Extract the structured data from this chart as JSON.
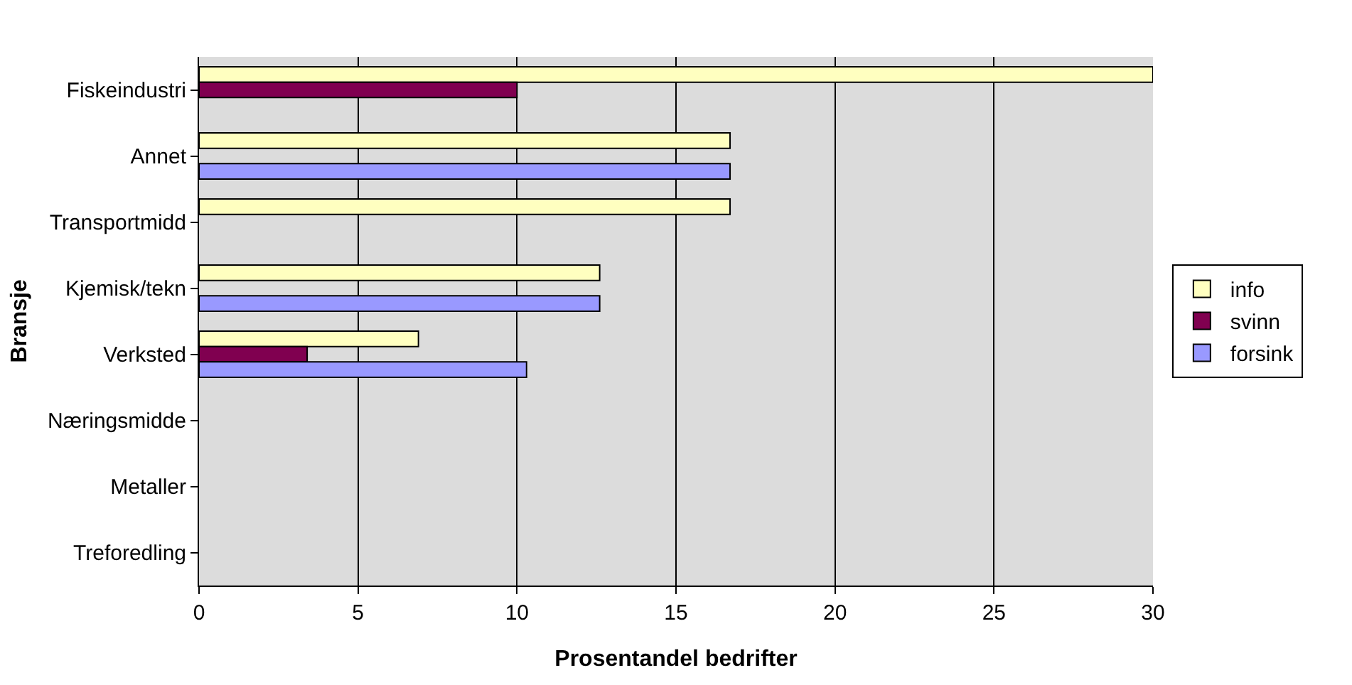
{
  "chart_data": {
    "type": "bar",
    "orientation": "horizontal",
    "xlabel": "Prosentandel bedrifter",
    "ylabel": "Bransje",
    "categories": [
      "Fiskeindustri",
      "Annet",
      "Transportmidd",
      "Kjemisk/tekn",
      "Verksted",
      "Næringsmidde",
      "Metaller",
      "Treforedling"
    ],
    "series": [
      {
        "name": "info",
        "color": "#ffffc0",
        "values": [
          30,
          16.7,
          16.7,
          12.6,
          6.9,
          null,
          null,
          null
        ]
      },
      {
        "name": "svinn",
        "color": "#800050",
        "values": [
          10,
          null,
          null,
          null,
          3.4,
          null,
          null,
          null
        ]
      },
      {
        "name": "forsink",
        "color": "#9999ff",
        "values": [
          null,
          16.7,
          null,
          12.6,
          10.3,
          null,
          null,
          null
        ]
      }
    ],
    "xlim": [
      0,
      30
    ],
    "xticks": [
      0,
      5,
      10,
      15,
      20,
      25,
      30
    ],
    "grid": "x",
    "legend": "right"
  }
}
